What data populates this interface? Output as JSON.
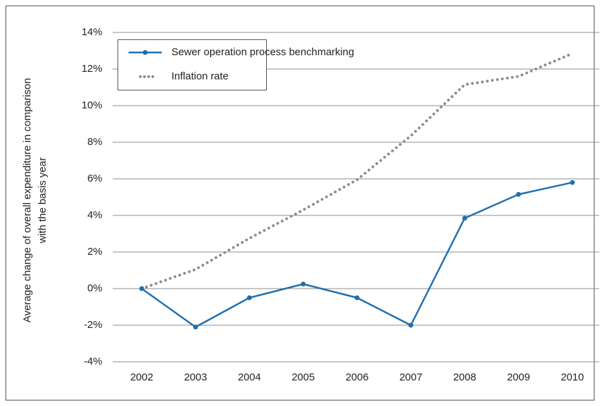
{
  "chart_data": {
    "type": "line",
    "ylabel": [
      "Average change of overall expenditure in comparison",
      "with the basis year"
    ],
    "categories": [
      "2002",
      "2003",
      "2004",
      "2005",
      "2006",
      "2007",
      "2008",
      "2009",
      "2010"
    ],
    "series": [
      {
        "name": "Sewer operation process benchmarking",
        "color": "#1f6fb0",
        "style": "solid-markers",
        "values": [
          0,
          -2.1,
          -0.5,
          0.25,
          -0.5,
          -2.0,
          3.85,
          5.15,
          5.8
        ]
      },
      {
        "name": "Inflation rate",
        "color": "#8c8c8c",
        "style": "dotted",
        "values": [
          0,
          1.05,
          2.75,
          4.3,
          5.95,
          8.35,
          11.15,
          11.6,
          12.85
        ]
      }
    ],
    "ylim": [
      -4,
      14
    ],
    "yticks": [
      {
        "value": -4,
        "label": "-4%"
      },
      {
        "value": -2,
        "label": "-2%"
      },
      {
        "value": 0,
        "label": "0%"
      },
      {
        "value": 2,
        "label": "2%"
      },
      {
        "value": 4,
        "label": "4%"
      },
      {
        "value": 6,
        "label": "6%"
      },
      {
        "value": 8,
        "label": "8%"
      },
      {
        "value": 10,
        "label": "10%"
      },
      {
        "value": 12,
        "label": "12%"
      },
      {
        "value": 14,
        "label": "14%"
      }
    ],
    "grid": true,
    "legend": "top-left"
  }
}
